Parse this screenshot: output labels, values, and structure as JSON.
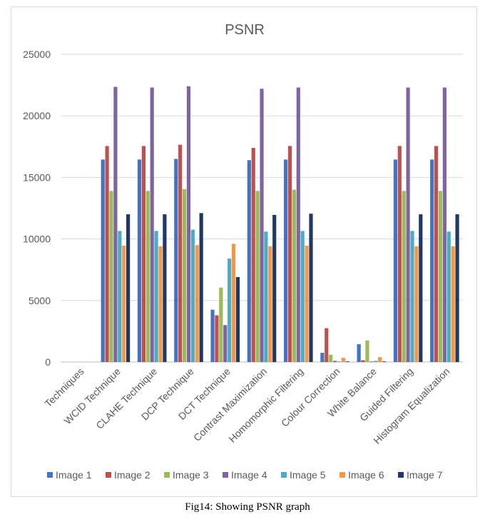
{
  "caption": "Fig14: Showing PSNR graph",
  "colors": [
    "#4472c4",
    "#c0504d",
    "#9bbb59",
    "#8064a2",
    "#4bacc6",
    "#f79646",
    "#1f3864"
  ],
  "chart_data": {
    "type": "bar",
    "title": "PSNR",
    "xlabel": "",
    "ylabel": "",
    "ylim": [
      0,
      25000
    ],
    "yticks": [
      0,
      5000,
      10000,
      15000,
      20000,
      25000
    ],
    "grid": true,
    "legend_position": "bottom",
    "categories": [
      "Techniques",
      "WCID Technique",
      "CLAHE Technique",
      "DCP Technique",
      "DCT Technique",
      "Contrast Maximization",
      "Homomorphic Filtering",
      "Colour Correction",
      "White Balance",
      "Guided Filtering",
      "Histogram Equalization"
    ],
    "series": [
      {
        "name": "Image 1",
        "values": [
          0,
          16450,
          16450,
          16500,
          4250,
          16400,
          16450,
          750,
          1450,
          16450,
          16450
        ]
      },
      {
        "name": "Image 2",
        "values": [
          0,
          17550,
          17550,
          17650,
          3800,
          17400,
          17550,
          2750,
          150,
          17550,
          17550
        ]
      },
      {
        "name": "Image 3",
        "values": [
          0,
          13900,
          13900,
          14050,
          6050,
          13900,
          14000,
          600,
          1750,
          13900,
          13900
        ]
      },
      {
        "name": "Image 4",
        "values": [
          0,
          22350,
          22300,
          22400,
          3000,
          22200,
          22300,
          100,
          50,
          22300,
          22300
        ]
      },
      {
        "name": "Image 5",
        "values": [
          0,
          10650,
          10650,
          10750,
          8400,
          10600,
          10650,
          50,
          100,
          10650,
          10600
        ]
      },
      {
        "name": "Image 6",
        "values": [
          0,
          9450,
          9400,
          9500,
          9600,
          9400,
          9450,
          350,
          400,
          9400,
          9400
        ]
      },
      {
        "name": "Image 7",
        "values": [
          0,
          12000,
          12000,
          12100,
          6900,
          11950,
          12050,
          50,
          50,
          12000,
          12000
        ]
      }
    ]
  }
}
